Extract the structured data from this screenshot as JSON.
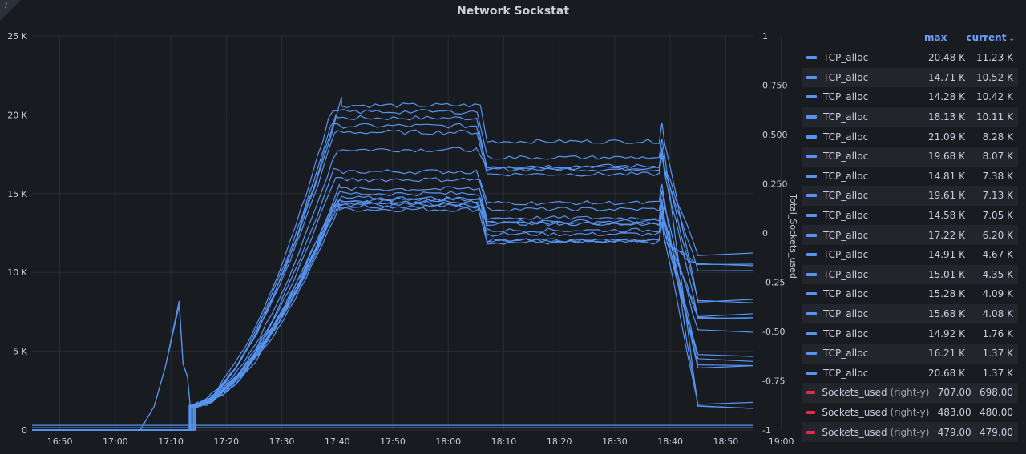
{
  "panel": {
    "title": "Network Sockstat",
    "info_icon": "info-icon"
  },
  "chart_data": {
    "type": "line",
    "x": [
      "16:50",
      "17:00",
      "17:10",
      "17:20",
      "17:30",
      "17:40",
      "17:50",
      "18:00",
      "18:10",
      "18:20",
      "18:30",
      "18:40",
      "18:50",
      "19:00"
    ],
    "x_range_minutes": [
      0,
      130
    ],
    "y_left": {
      "ticks": [
        "0",
        "5 K",
        "10 K",
        "15 K",
        "20 K",
        "25 K"
      ],
      "range": [
        0,
        25000
      ]
    },
    "y_right": {
      "label": "Total_Sockets_used",
      "ticks": [
        "-1",
        "-0.75",
        "-0.50",
        "-0.25",
        "0",
        "0.250",
        "0.500",
        "0.750",
        "1"
      ],
      "range": [
        -1,
        1
      ]
    },
    "grid": true,
    "legend_placement": "right",
    "series_color": "#5794f2",
    "right_series_color": "#e02f44",
    "series": [
      {
        "name": "TCP_alloc",
        "max": "20.48 K",
        "current": "11.23 K",
        "peak": 20480,
        "plateau": 19800,
        "end": 11230
      },
      {
        "name": "TCP_alloc",
        "max": "14.71 K",
        "current": "10.52 K",
        "peak": 14710,
        "plateau": 14200,
        "end": 10520
      },
      {
        "name": "TCP_alloc",
        "max": "14.28 K",
        "current": "10.42 K",
        "peak": 14280,
        "plateau": 14000,
        "end": 10420
      },
      {
        "name": "TCP_alloc",
        "max": "18.13 K",
        "current": "10.11 K",
        "peak": 18130,
        "plateau": 17800,
        "end": 10110
      },
      {
        "name": "TCP_alloc",
        "max": "21.09 K",
        "current": "8.28 K",
        "peak": 21090,
        "plateau": 20600,
        "end": 8280
      },
      {
        "name": "TCP_alloc",
        "max": "19.68 K",
        "current": "8.07 K",
        "peak": 19680,
        "plateau": 19300,
        "end": 8070
      },
      {
        "name": "TCP_alloc",
        "max": "14.81 K",
        "current": "7.38 K",
        "peak": 14810,
        "plateau": 14500,
        "end": 7380
      },
      {
        "name": "TCP_alloc",
        "max": "19.61 K",
        "current": "7.13 K",
        "peak": 19610,
        "plateau": 18900,
        "end": 7130
      },
      {
        "name": "TCP_alloc",
        "max": "14.58 K",
        "current": "7.05 K",
        "peak": 14580,
        "plateau": 14300,
        "end": 7050
      },
      {
        "name": "TCP_alloc",
        "max": "17.22 K",
        "current": "6.20 K",
        "peak": 17220,
        "plateau": 16400,
        "end": 6200
      },
      {
        "name": "TCP_alloc",
        "max": "14.91 K",
        "current": "4.67 K",
        "peak": 14910,
        "plateau": 14600,
        "end": 4670
      },
      {
        "name": "TCP_alloc",
        "max": "15.01 K",
        "current": "4.35 K",
        "peak": 15010,
        "plateau": 14700,
        "end": 4350
      },
      {
        "name": "TCP_alloc",
        "max": "15.28 K",
        "current": "4.09 K",
        "peak": 15280,
        "plateau": 15000,
        "end": 4090
      },
      {
        "name": "TCP_alloc",
        "max": "15.68 K",
        "current": "4.08 K",
        "peak": 15680,
        "plateau": 15300,
        "end": 4080
      },
      {
        "name": "TCP_alloc",
        "max": "14.92 K",
        "current": "1.76 K",
        "peak": 14920,
        "plateau": 14400,
        "end": 1760
      },
      {
        "name": "TCP_alloc",
        "max": "16.21 K",
        "current": "1.37 K",
        "peak": 16210,
        "plateau": 15900,
        "end": 1370
      },
      {
        "name": "TCP_alloc",
        "max": "20.68 K",
        "current": "1.37 K",
        "peak": 20680,
        "plateau": 20200,
        "end": 1370
      },
      {
        "name": "Sockets_used",
        "axis_note": "(right-y)",
        "max": "707.00",
        "current": "698.00",
        "right": true
      },
      {
        "name": "Sockets_used",
        "axis_note": "(right-y)",
        "max": "483.00",
        "current": "480.00",
        "right": true
      },
      {
        "name": "Sockets_used",
        "axis_note": "(right-y)",
        "max": "479.00",
        "current": "479.00",
        "right": true
      }
    ]
  },
  "legend": {
    "col_max": "max",
    "col_current": "current"
  }
}
